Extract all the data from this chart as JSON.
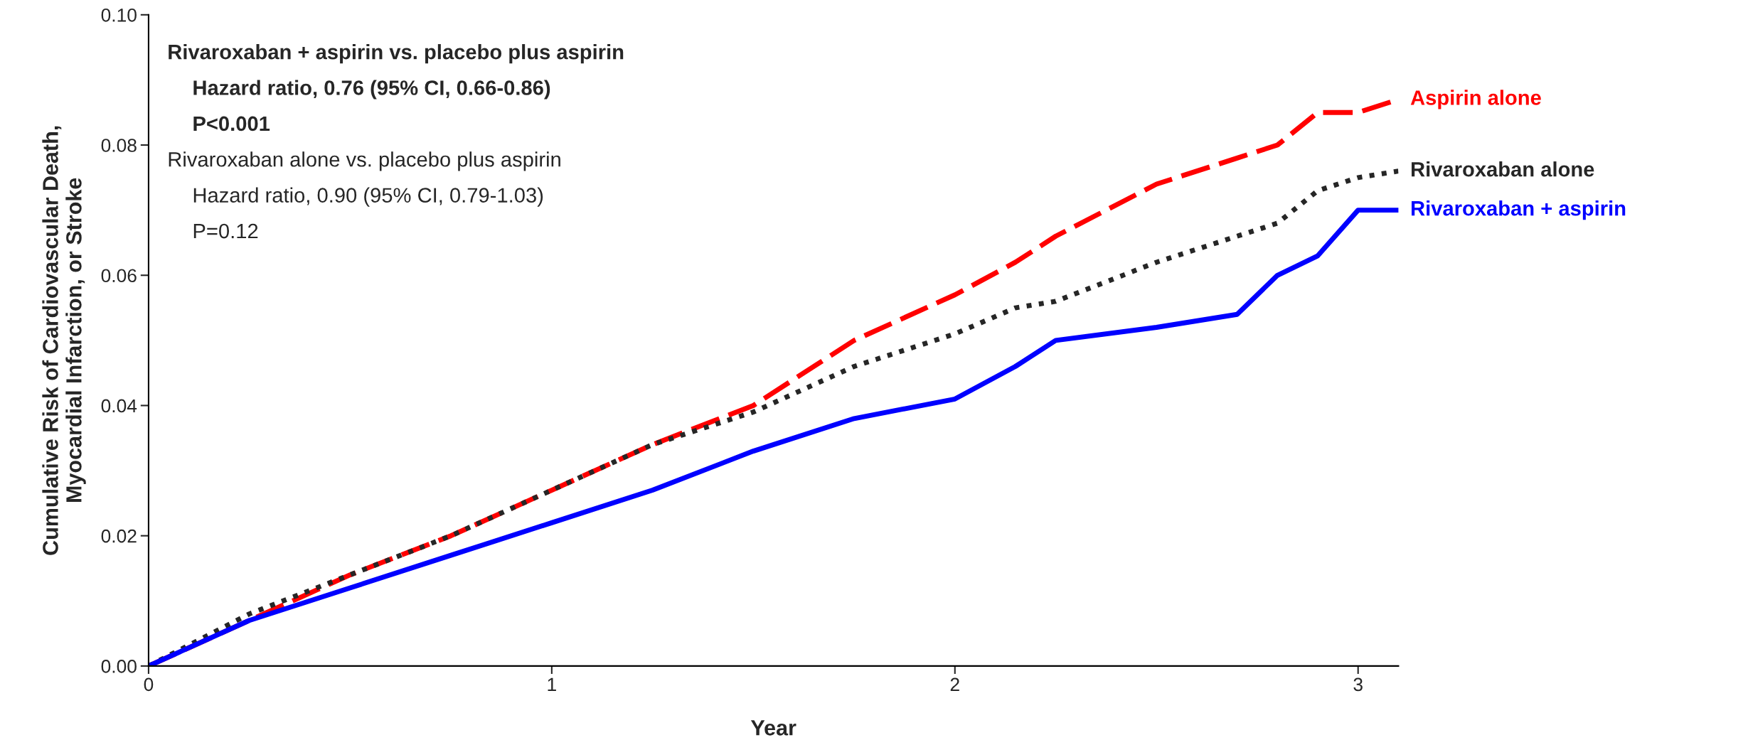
{
  "chart_data": {
    "type": "line",
    "xlabel": "Year",
    "ylabel": "Cumulative Risk of Cardiovascular Death,\nMyocardial Infarction, or Stroke",
    "xlim": [
      0,
      3.1
    ],
    "xticks": [
      0,
      1,
      2,
      3
    ],
    "ylim": [
      0,
      0.1
    ],
    "yticks": [
      {
        "value": 0,
        "label": "0.00"
      },
      {
        "value": 0.02,
        "label": "0.02"
      },
      {
        "value": 0.04,
        "label": "0.04"
      },
      {
        "value": 0.06,
        "label": "0.06"
      },
      {
        "value": 0.08,
        "label": "0.08"
      },
      {
        "value": 0.1,
        "label": "0.10"
      }
    ],
    "grid": false,
    "legend": false,
    "marker": "none",
    "x": [
      0,
      0.25,
      0.5,
      0.75,
      1,
      1.25,
      1.5,
      1.75,
      2,
      2.15,
      2.25,
      2.5,
      2.7,
      2.8,
      2.9,
      3,
      3.1
    ],
    "series": [
      {
        "name": "Aspirin alone",
        "color": "#ff0000",
        "line_style": "dashed",
        "values": [
          0,
          0.007,
          0.014,
          0.02,
          0.027,
          0.034,
          0.04,
          0.05,
          0.057,
          0.062,
          0.066,
          0.074,
          0.078,
          0.08,
          0.085,
          0.085,
          0.087
        ]
      },
      {
        "name": "Rivaroxaban alone",
        "color": "#262626",
        "line_style": "dotted",
        "values": [
          0,
          0.008,
          0.014,
          0.02,
          0.027,
          0.034,
          0.039,
          0.046,
          0.051,
          0.055,
          0.056,
          0.062,
          0.066,
          0.068,
          0.073,
          0.075,
          0.076
        ]
      },
      {
        "name": "Rivaroxaban + aspirin",
        "color": "#0000ff",
        "line_style": "solid",
        "values": [
          0,
          0.007,
          0.012,
          0.017,
          0.022,
          0.027,
          0.033,
          0.038,
          0.041,
          0.046,
          0.05,
          0.052,
          0.054,
          0.06,
          0.063,
          0.07,
          0.07
        ]
      }
    ],
    "annotations": [
      "Rivaroxaban + aspirin vs. placebo plus aspirin",
      "Hazard ratio, 0.76 (95% CI, 0.66-0.86)",
      "P<0.001",
      "Rivaroxaban alone vs. placebo plus aspirin",
      "Hazard ratio, 0.90 (95% CI, 0.79-1.03)",
      "P=0.12"
    ]
  }
}
